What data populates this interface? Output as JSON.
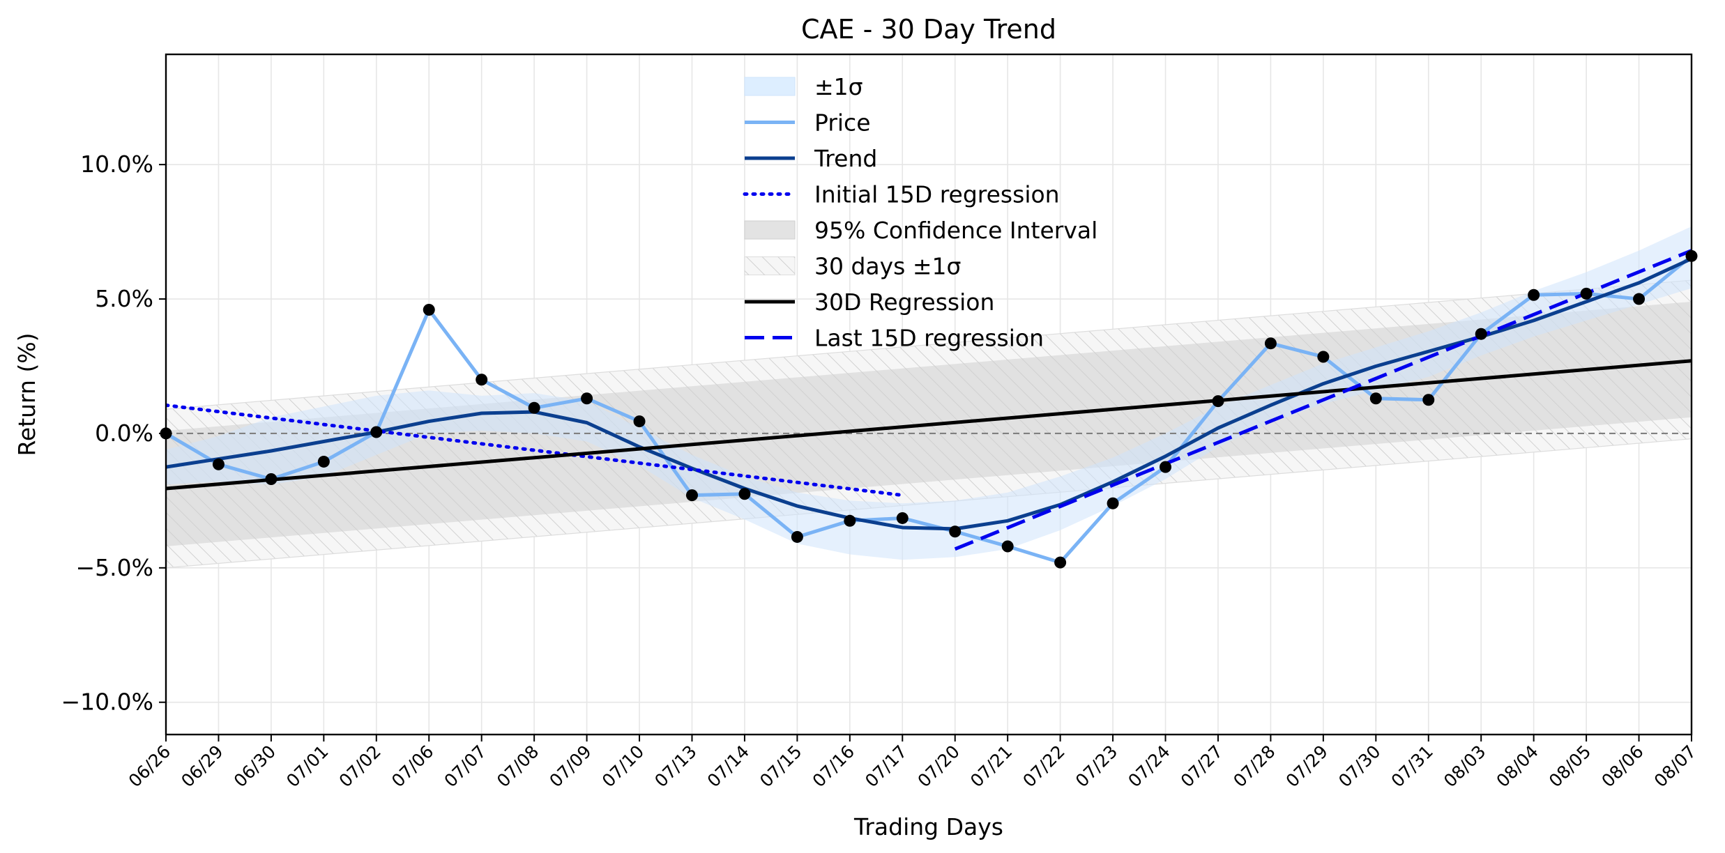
{
  "chart_data": {
    "type": "line",
    "title": "CAE - 30 Day Trend",
    "xlabel": "Trading Days",
    "ylabel": "Return (%)",
    "ylim": [
      -11.2,
      14.1
    ],
    "yticks": [
      -10,
      -5,
      0,
      5,
      10
    ],
    "ytick_labels": [
      "−10.0%",
      "−5.0%",
      "0.0%",
      "5.0%",
      "10.0%"
    ],
    "grid": true,
    "legend_position": "top-center",
    "categories": [
      "06/26",
      "06/29",
      "06/30",
      "07/01",
      "07/02",
      "07/06",
      "07/07",
      "07/08",
      "07/09",
      "07/10",
      "07/13",
      "07/14",
      "07/15",
      "07/16",
      "07/17",
      "07/20",
      "07/21",
      "07/22",
      "07/23",
      "07/24",
      "07/27",
      "07/28",
      "07/29",
      "07/30",
      "07/31",
      "08/03",
      "08/04",
      "08/05",
      "08/06",
      "08/07"
    ],
    "series": [
      {
        "name": "Price",
        "color": "#7ab3f5",
        "values": [
          0.0,
          -1.15,
          -1.7,
          -1.05,
          0.05,
          4.6,
          2.0,
          0.95,
          1.3,
          0.45,
          -2.3,
          -2.25,
          -3.85,
          -3.25,
          -3.15,
          -3.65,
          -4.2,
          -4.8,
          -2.6,
          -1.25,
          1.2,
          3.35,
          2.85,
          1.3,
          1.25,
          3.7,
          5.15,
          5.2,
          5.0,
          6.6
        ]
      },
      {
        "name": "Trend",
        "color": "#0b3f8f",
        "values": [
          -1.25,
          -0.95,
          -0.65,
          -0.3,
          0.05,
          0.45,
          0.75,
          0.8,
          0.4,
          -0.5,
          -1.3,
          -2.05,
          -2.7,
          -3.15,
          -3.5,
          -3.55,
          -3.25,
          -2.65,
          -1.8,
          -0.85,
          0.2,
          1.05,
          1.85,
          2.5,
          3.05,
          3.6,
          4.2,
          4.9,
          5.6,
          6.5
        ]
      },
      {
        "name": "±1σ",
        "color": "#ddeeff",
        "lower": [
          -1.9,
          -1.8,
          -1.9,
          -1.6,
          -0.8,
          0.0,
          0.1,
          0.0,
          -0.3,
          -1.2,
          -2.4,
          -3.2,
          -4.1,
          -4.5,
          -4.7,
          -4.6,
          -4.3,
          -3.6,
          -2.7,
          -1.7,
          -0.5,
          0.4,
          1.1,
          1.6,
          2.1,
          2.9,
          3.6,
          4.2,
          4.8,
          5.4
        ],
        "upper": [
          -0.6,
          -0.1,
          0.6,
          1.0,
          1.4,
          1.6,
          1.4,
          1.5,
          1.2,
          0.2,
          -0.8,
          -1.6,
          -2.2,
          -2.5,
          -2.6,
          -2.5,
          -2.2,
          -1.6,
          -0.9,
          0.0,
          1.0,
          1.8,
          2.6,
          3.2,
          3.8,
          4.5,
          5.3,
          6.0,
          6.8,
          7.7
        ]
      },
      {
        "name": "Initial 15D regression",
        "color": "#0000ee",
        "x_range": [
          0,
          14
        ],
        "y_range": [
          1.05,
          -2.3
        ]
      },
      {
        "name": "Last 15D regression",
        "color": "#0000ee",
        "x_range": [
          15,
          29
        ],
        "y_range": [
          -4.3,
          6.8
        ]
      },
      {
        "name": "30D Regression",
        "color": "#000000",
        "x_range": [
          0,
          29
        ],
        "y_range": [
          -2.05,
          2.7
        ]
      },
      {
        "name": "95% Confidence Interval",
        "color": "#d5d5d5",
        "lower": [
          -4.2,
          0.6
        ],
        "upper": [
          0.1,
          4.9
        ]
      },
      {
        "name": "30 days ±1σ",
        "color": "#cccccc",
        "lower": [
          -5.0,
          -0.2
        ],
        "upper": [
          0.9,
          5.7
        ]
      }
    ],
    "legend_order": [
      "±1σ",
      "Price",
      "Trend",
      "Initial 15D regression",
      "95% Confidence Interval",
      "30 days ±1σ",
      "30D Regression",
      "Last 15D regression"
    ]
  }
}
